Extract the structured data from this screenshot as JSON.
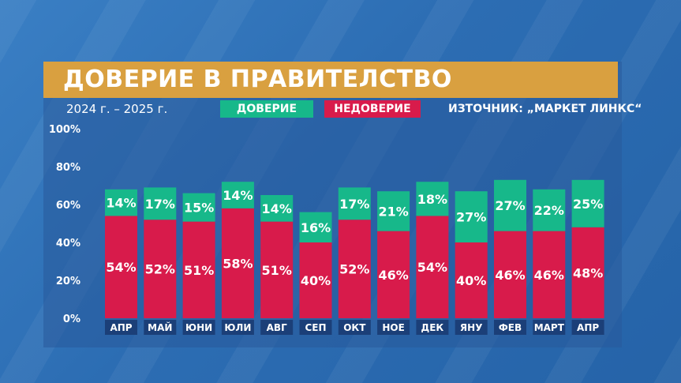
{
  "header": {
    "title": "ДОВЕРИЕ В ПРАВИТЕЛСТВО",
    "period": "2024 г. – 2025 г.",
    "source": "ИЗТОЧНИК: „МАРКЕТ ЛИНКС“"
  },
  "legend": {
    "trust_label": "ДОВЕРИЕ",
    "distrust_label": "НЕДОВЕРИЕ"
  },
  "colors": {
    "trust": "#17b88a",
    "distrust": "#d81b4b",
    "title_bar": "#d9a040",
    "month_box": "#1b3f78"
  },
  "chart_data": {
    "type": "bar",
    "stacked": true,
    "title": "ДОВЕРИЕ В ПРАВИТЕЛСТВО",
    "categories": [
      "АПР",
      "МАЙ",
      "ЮНИ",
      "ЮЛИ",
      "АВГ",
      "СЕП",
      "ОКТ",
      "НОЕ",
      "ДЕК",
      "ЯНУ",
      "ФЕВ",
      "МАРТ",
      "АПР"
    ],
    "series": [
      {
        "name": "НЕДОВЕРИЕ",
        "values": [
          54,
          52,
          51,
          58,
          51,
          40,
          52,
          46,
          54,
          40,
          46,
          46,
          48
        ]
      },
      {
        "name": "ДОВЕРИЕ",
        "values": [
          14,
          17,
          15,
          14,
          14,
          16,
          17,
          21,
          18,
          27,
          27,
          22,
          25
        ]
      }
    ],
    "value_suffix": "%",
    "yticks": [
      "0%",
      "20%",
      "40%",
      "60%",
      "80%",
      "100%"
    ],
    "ylim": [
      0,
      100
    ],
    "grid": false,
    "legend_position": "top-center"
  }
}
